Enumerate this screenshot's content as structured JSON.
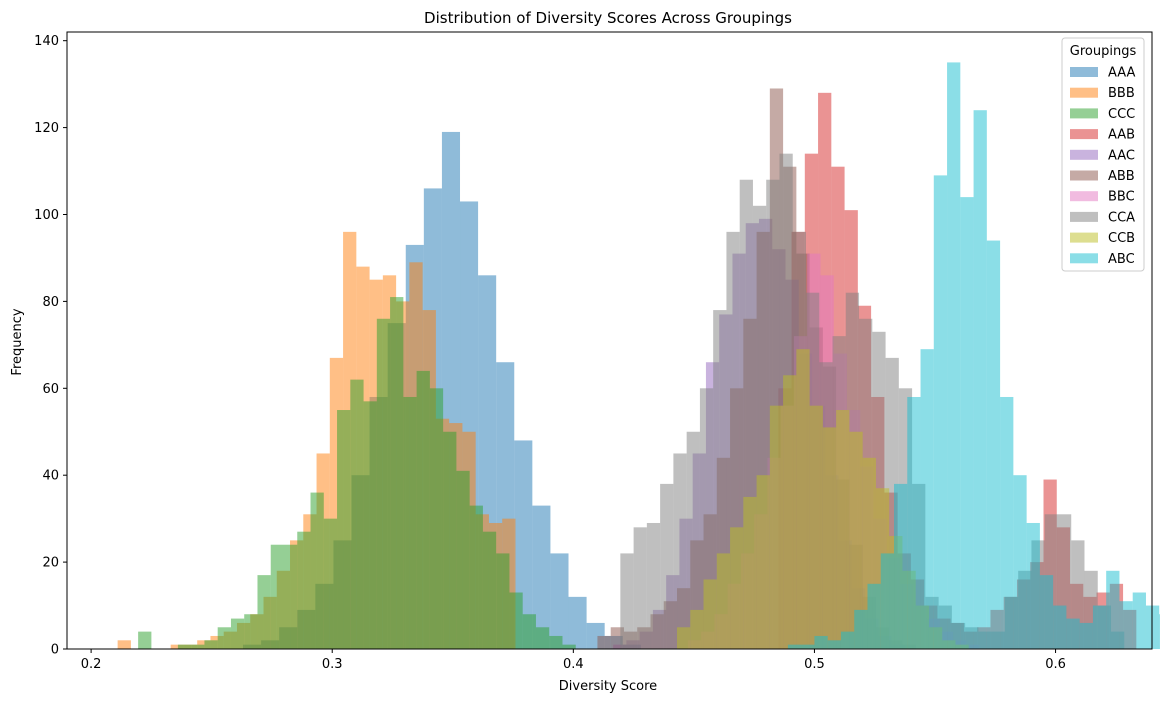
{
  "chart_data": {
    "type": "histogram",
    "title": "Distribution of Diversity Scores Across Groupings",
    "xlabel": "Diversity Score",
    "ylabel": "Frequency",
    "xlim": [
      0.19,
      0.64
    ],
    "ylim": [
      0,
      142
    ],
    "x_ticks": [
      0.2,
      0.3,
      0.4,
      0.5,
      0.6
    ],
    "x_tick_labels": [
      "0.2",
      "0.3",
      "0.4",
      "0.5",
      "0.6"
    ],
    "y_ticks": [
      0,
      20,
      40,
      60,
      80,
      100,
      120,
      140
    ],
    "y_tick_labels": [
      "0",
      "20",
      "40",
      "60",
      "80",
      "100",
      "120",
      "140"
    ],
    "grid": false,
    "legend": {
      "title": "Groupings",
      "placement": "top-right"
    },
    "bar_alpha": 0.5,
    "series": [
      {
        "name": "AAA",
        "color": "#1f77b4",
        "bins_start": 0.263,
        "bin_width": 0.0075,
        "counts": [
          1,
          2,
          5,
          9,
          15,
          25,
          40,
          58,
          75,
          93,
          106,
          119,
          103,
          86,
          66,
          48,
          33,
          22,
          12,
          6,
          3,
          1
        ]
      },
      {
        "name": "BBB",
        "color": "#ff7f0e",
        "bins_start": 0.211,
        "bin_width": 0.0055,
        "counts": [
          2,
          0,
          0,
          0,
          1,
          1,
          2,
          3,
          4,
          6,
          8,
          12,
          18,
          25,
          31,
          45,
          67,
          96,
          88,
          85,
          86,
          80,
          89,
          78,
          53,
          52,
          50,
          31,
          29,
          30,
          0,
          0,
          0,
          0,
          0,
          0,
          0,
          0,
          0,
          0,
          0,
          0,
          0,
          0,
          0,
          0,
          0,
          0,
          0,
          0,
          0,
          0,
          0,
          0,
          0,
          0,
          0
        ]
      },
      {
        "name": "CCC",
        "color": "#2ca02c",
        "bins_start": 0.2195,
        "bin_width": 0.0055,
        "counts": [
          4,
          0,
          0,
          1,
          1,
          2,
          5,
          7,
          8,
          17,
          24,
          24,
          27,
          36,
          30,
          55,
          62,
          57,
          76,
          81,
          58,
          64,
          60,
          50,
          41,
          33,
          27,
          22,
          13,
          8,
          5,
          3,
          1
        ]
      },
      {
        "name": "AAB",
        "color": "#d62728",
        "bins_start": 0.485,
        "bin_width": 0.0055,
        "counts": [
          60,
          96,
          114,
          128,
          111,
          101,
          79,
          58,
          36,
          22,
          16,
          10,
          7,
          6,
          4,
          5,
          9,
          12,
          16,
          20,
          39,
          28,
          15,
          12,
          13,
          15,
          9
        ]
      },
      {
        "name": "AAC",
        "color": "#9467bd",
        "bins_start": 0.4165,
        "bin_width": 0.0055,
        "counts": [
          1,
          2,
          4,
          9,
          17,
          30,
          45,
          66,
          77,
          91,
          98,
          99,
          92,
          85,
          68,
          56,
          40,
          25,
          14,
          7,
          3,
          1
        ]
      },
      {
        "name": "ABB",
        "color": "#8c564b",
        "bins_start": 0.41,
        "bin_width": 0.0055,
        "counts": [
          3,
          5,
          4,
          5,
          8,
          11,
          14,
          25,
          31,
          44,
          60,
          76,
          96,
          129,
          111,
          91,
          74,
          65,
          39,
          24,
          12,
          5,
          2,
          1
        ]
      },
      {
        "name": "BBC",
        "color": "#e377c2",
        "bins_start": 0.4475,
        "bin_width": 0.0055,
        "counts": [
          2,
          4,
          8,
          15,
          22,
          31,
          44,
          56,
          72,
          91,
          86,
          68,
          55,
          42,
          30,
          21,
          15,
          10,
          7,
          4,
          2,
          1
        ]
      },
      {
        "name": "CCA",
        "color": "#7f7f7f",
        "bins_start": 0.4195,
        "bin_width": 0.0055,
        "counts": [
          22,
          28,
          29,
          38,
          45,
          50,
          60,
          78,
          96,
          108,
          102,
          108,
          114,
          96,
          82,
          66,
          72,
          82,
          76,
          73,
          67,
          60,
          38,
          12,
          10,
          6,
          5,
          4,
          4,
          12,
          18,
          25,
          31,
          31,
          25,
          18,
          10,
          4
        ]
      },
      {
        "name": "CCB",
        "color": "#bcbd22",
        "bins_start": 0.443,
        "bin_width": 0.0055,
        "counts": [
          5,
          9,
          16,
          22,
          28,
          35,
          40,
          56,
          63,
          69,
          56,
          51,
          55,
          50,
          44,
          37,
          26,
          18,
          10,
          5,
          2,
          1
        ]
      },
      {
        "name": "ABC",
        "color": "#17becf",
        "bins_start": 0.489,
        "bin_width": 0.0055,
        "counts": [
          1,
          1,
          3,
          2,
          4,
          9,
          15,
          22,
          38,
          58,
          69,
          109,
          135,
          104,
          124,
          94,
          58,
          40,
          29,
          17,
          10,
          7,
          6,
          10,
          18,
          11,
          13,
          10,
          8,
          5,
          4,
          3,
          5
        ]
      }
    ]
  }
}
